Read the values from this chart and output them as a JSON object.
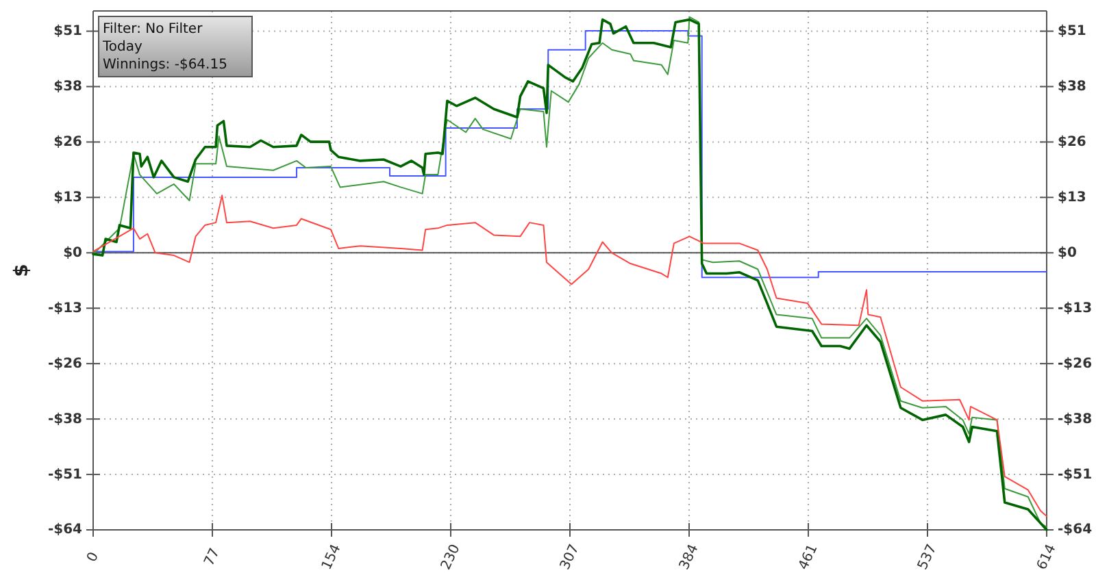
{
  "chart_data": {
    "type": "line",
    "ylabel": "$",
    "annotations": [
      "Filter: No Filter",
      "Today",
      "Winnings: -$64.15"
    ],
    "xlim": [
      0,
      614
    ],
    "ylim": [
      -64.15,
      56
    ],
    "xticks": [
      0,
      {
        "value": 76.75,
        "label": "77"
      },
      {
        "value": 153.5,
        "label": "154"
      },
      {
        "value": 230.25,
        "label": "230"
      },
      307,
      {
        "value": 383.75,
        "label": "384"
      },
      {
        "value": 460.5,
        "label": "461"
      },
      {
        "value": 537.25,
        "label": "537"
      },
      614
    ],
    "yticks": [
      {
        "value": 51.32,
        "label": "$51"
      },
      {
        "value": 38.49,
        "label": "$38"
      },
      {
        "value": 25.66,
        "label": "$26"
      },
      {
        "value": 12.83,
        "label": "$13"
      },
      {
        "value": 0,
        "label": "$0"
      },
      {
        "value": -12.83,
        "label": "-$13"
      },
      {
        "value": -25.66,
        "label": "-$26"
      },
      {
        "value": -38.49,
        "label": "-$38"
      },
      {
        "value": -51.32,
        "label": "-$51"
      },
      {
        "value": -64.15,
        "label": "-$64"
      }
    ],
    "y2lim": [
      -64.15,
      56
    ],
    "y2ticks": [
      {
        "value": 51.32,
        "label": "$51"
      },
      {
        "value": 38.49,
        "label": "$38"
      },
      {
        "value": 25.66,
        "label": "$26"
      },
      {
        "value": 12.83,
        "label": "$13"
      },
      {
        "value": 0,
        "label": "$0"
      },
      {
        "value": -12.83,
        "label": "-$13"
      },
      {
        "value": -25.66,
        "label": "-$26"
      },
      {
        "value": -38.49,
        "label": "-$38"
      },
      {
        "value": -51.32,
        "label": "-$51"
      },
      {
        "value": -64.15,
        "label": "-$64"
      }
    ],
    "grid": true,
    "marker": "none",
    "line_style": "solid",
    "ref_lines": [
      {
        "axis": "y",
        "value": 0,
        "color": "#555555"
      }
    ],
    "series": [
      {
        "type": "step",
        "color": "#4455ff",
        "x": [
          0,
          26,
          131,
          191,
          227,
          273,
          293,
          317,
          383,
          392,
          467,
          614
        ],
        "values": [
          0.3,
          17.5,
          19.7,
          17.8,
          28.9,
          33.3,
          47.0,
          51.4,
          50.2,
          -5.7,
          -4.4,
          -4.4
        ]
      },
      {
        "color": "#3c9a3c",
        "x": [
          0,
          8,
          17,
          26,
          30,
          41,
          52,
          62,
          66,
          79,
          81,
          86,
          116,
          131,
          137,
          153,
          159,
          187,
          198,
          212,
          214,
          222,
          227,
          228,
          240,
          246,
          251,
          269,
          275,
          290,
          292,
          295,
          306,
          313,
          319,
          328,
          334,
          346,
          348,
          366,
          370,
          374,
          383,
          384,
          390,
          392,
          399,
          416,
          428,
          440,
          463,
          469,
          487,
          498,
          507,
          520,
          534,
          549,
          560,
          564,
          566,
          582,
          587,
          602,
          610,
          614
        ],
        "values": [
          -0.3,
          2.5,
          5.7,
          22.9,
          18.1,
          13.7,
          15.9,
          12.1,
          20.6,
          20.6,
          27.0,
          20.0,
          19.1,
          21.3,
          19.7,
          20.0,
          15.2,
          16.5,
          15.2,
          13.7,
          18.1,
          18.1,
          29.2,
          30.8,
          27.9,
          31.1,
          28.6,
          26.4,
          33.3,
          32.7,
          24.5,
          37.5,
          34.9,
          39.1,
          45.1,
          48.6,
          47.0,
          46.0,
          44.5,
          43.5,
          41.3,
          49.2,
          48.6,
          54.6,
          53.4,
          -1.6,
          -2.2,
          -1.9,
          -3.8,
          -14.3,
          -15.2,
          -19.7,
          -19.7,
          -15.2,
          -19.1,
          -34.3,
          -35.9,
          -35.6,
          -38.7,
          -41.9,
          -38.1,
          -38.7,
          -54.6,
          -56.5,
          -62.6,
          -63.5
        ]
      },
      {
        "color": "#006400",
        "x": [
          0,
          6,
          8,
          15,
          17,
          24,
          26,
          30,
          31,
          35,
          39,
          44,
          52,
          61,
          66,
          72,
          79,
          80,
          84,
          86,
          101,
          108,
          116,
          131,
          134,
          140,
          152,
          153,
          158,
          172,
          187,
          198,
          205,
          212,
          213,
          214,
          222,
          225,
          228,
          234,
          246,
          258,
          273,
          275,
          280,
          290,
          292,
          293,
          304,
          309,
          315,
          321,
          326,
          328,
          333,
          335,
          343,
          348,
          361,
          372,
          375,
          384,
          390,
          392,
          395,
          408,
          416,
          428,
          434,
          440,
          463,
          469,
          481,
          487,
          498,
          507,
          520,
          534,
          549,
          560,
          564,
          566,
          582,
          587,
          602,
          614
        ],
        "values": [
          -0.3,
          -0.6,
          3.2,
          2.5,
          6.4,
          5.7,
          23.2,
          22.9,
          20.0,
          22.2,
          17.5,
          21.3,
          17.5,
          16.5,
          21.6,
          24.5,
          24.5,
          29.5,
          30.5,
          24.8,
          24.5,
          26.0,
          24.5,
          24.8,
          27.3,
          25.7,
          25.7,
          23.8,
          22.2,
          21.3,
          21.6,
          20.0,
          21.3,
          19.7,
          18.1,
          22.9,
          23.2,
          22.9,
          35.2,
          34.0,
          35.9,
          33.3,
          31.4,
          36.2,
          39.7,
          38.1,
          32.4,
          43.5,
          40.6,
          39.7,
          42.9,
          48.3,
          48.6,
          54.0,
          53.0,
          50.8,
          52.4,
          48.6,
          48.6,
          47.6,
          53.4,
          54.0,
          53.0,
          -2.5,
          -4.8,
          -4.8,
          -4.5,
          -6.4,
          -11.7,
          -17.1,
          -18.1,
          -21.6,
          -21.6,
          -22.2,
          -16.8,
          -20.6,
          -35.9,
          -38.7,
          -37.5,
          -40.3,
          -43.8,
          -40.3,
          -41.3,
          -57.8,
          -59.4,
          -64.15
        ]
      },
      {
        "color": "#ff4444",
        "x": [
          0,
          26,
          30,
          35,
          40,
          52,
          62,
          66,
          72,
          79,
          83,
          86,
          101,
          116,
          131,
          134,
          153,
          158,
          172,
          198,
          212,
          214,
          222,
          228,
          246,
          258,
          275,
          281,
          290,
          292,
          308,
          319,
          328,
          334,
          346,
          366,
          370,
          374,
          384,
          393,
          416,
          428,
          434,
          440,
          460,
          469,
          493,
          498,
          499,
          507,
          520,
          534,
          558,
          564,
          565,
          582,
          587,
          602,
          610,
          614
        ],
        "values": [
          0.3,
          5.7,
          3.2,
          4.4,
          0,
          -0.6,
          -2.2,
          3.8,
          6.4,
          7.0,
          13.3,
          7.0,
          7.3,
          5.7,
          6.4,
          7.9,
          5.4,
          1.0,
          1.6,
          1.0,
          0.6,
          5.4,
          5.7,
          6.4,
          7.0,
          4.1,
          3.8,
          7.0,
          6.4,
          -2.2,
          -7.3,
          -3.8,
          2.5,
          0,
          -2.5,
          -4.8,
          -5.7,
          2.2,
          3.8,
          2.2,
          2.2,
          0.6,
          -3.8,
          -10.5,
          -11.7,
          -16.5,
          -16.8,
          -8.6,
          -14.3,
          -14.9,
          -31.1,
          -34.3,
          -34.0,
          -38.7,
          -35.6,
          -38.7,
          -51.8,
          -54.9,
          -59.7,
          -61.0
        ]
      }
    ]
  }
}
